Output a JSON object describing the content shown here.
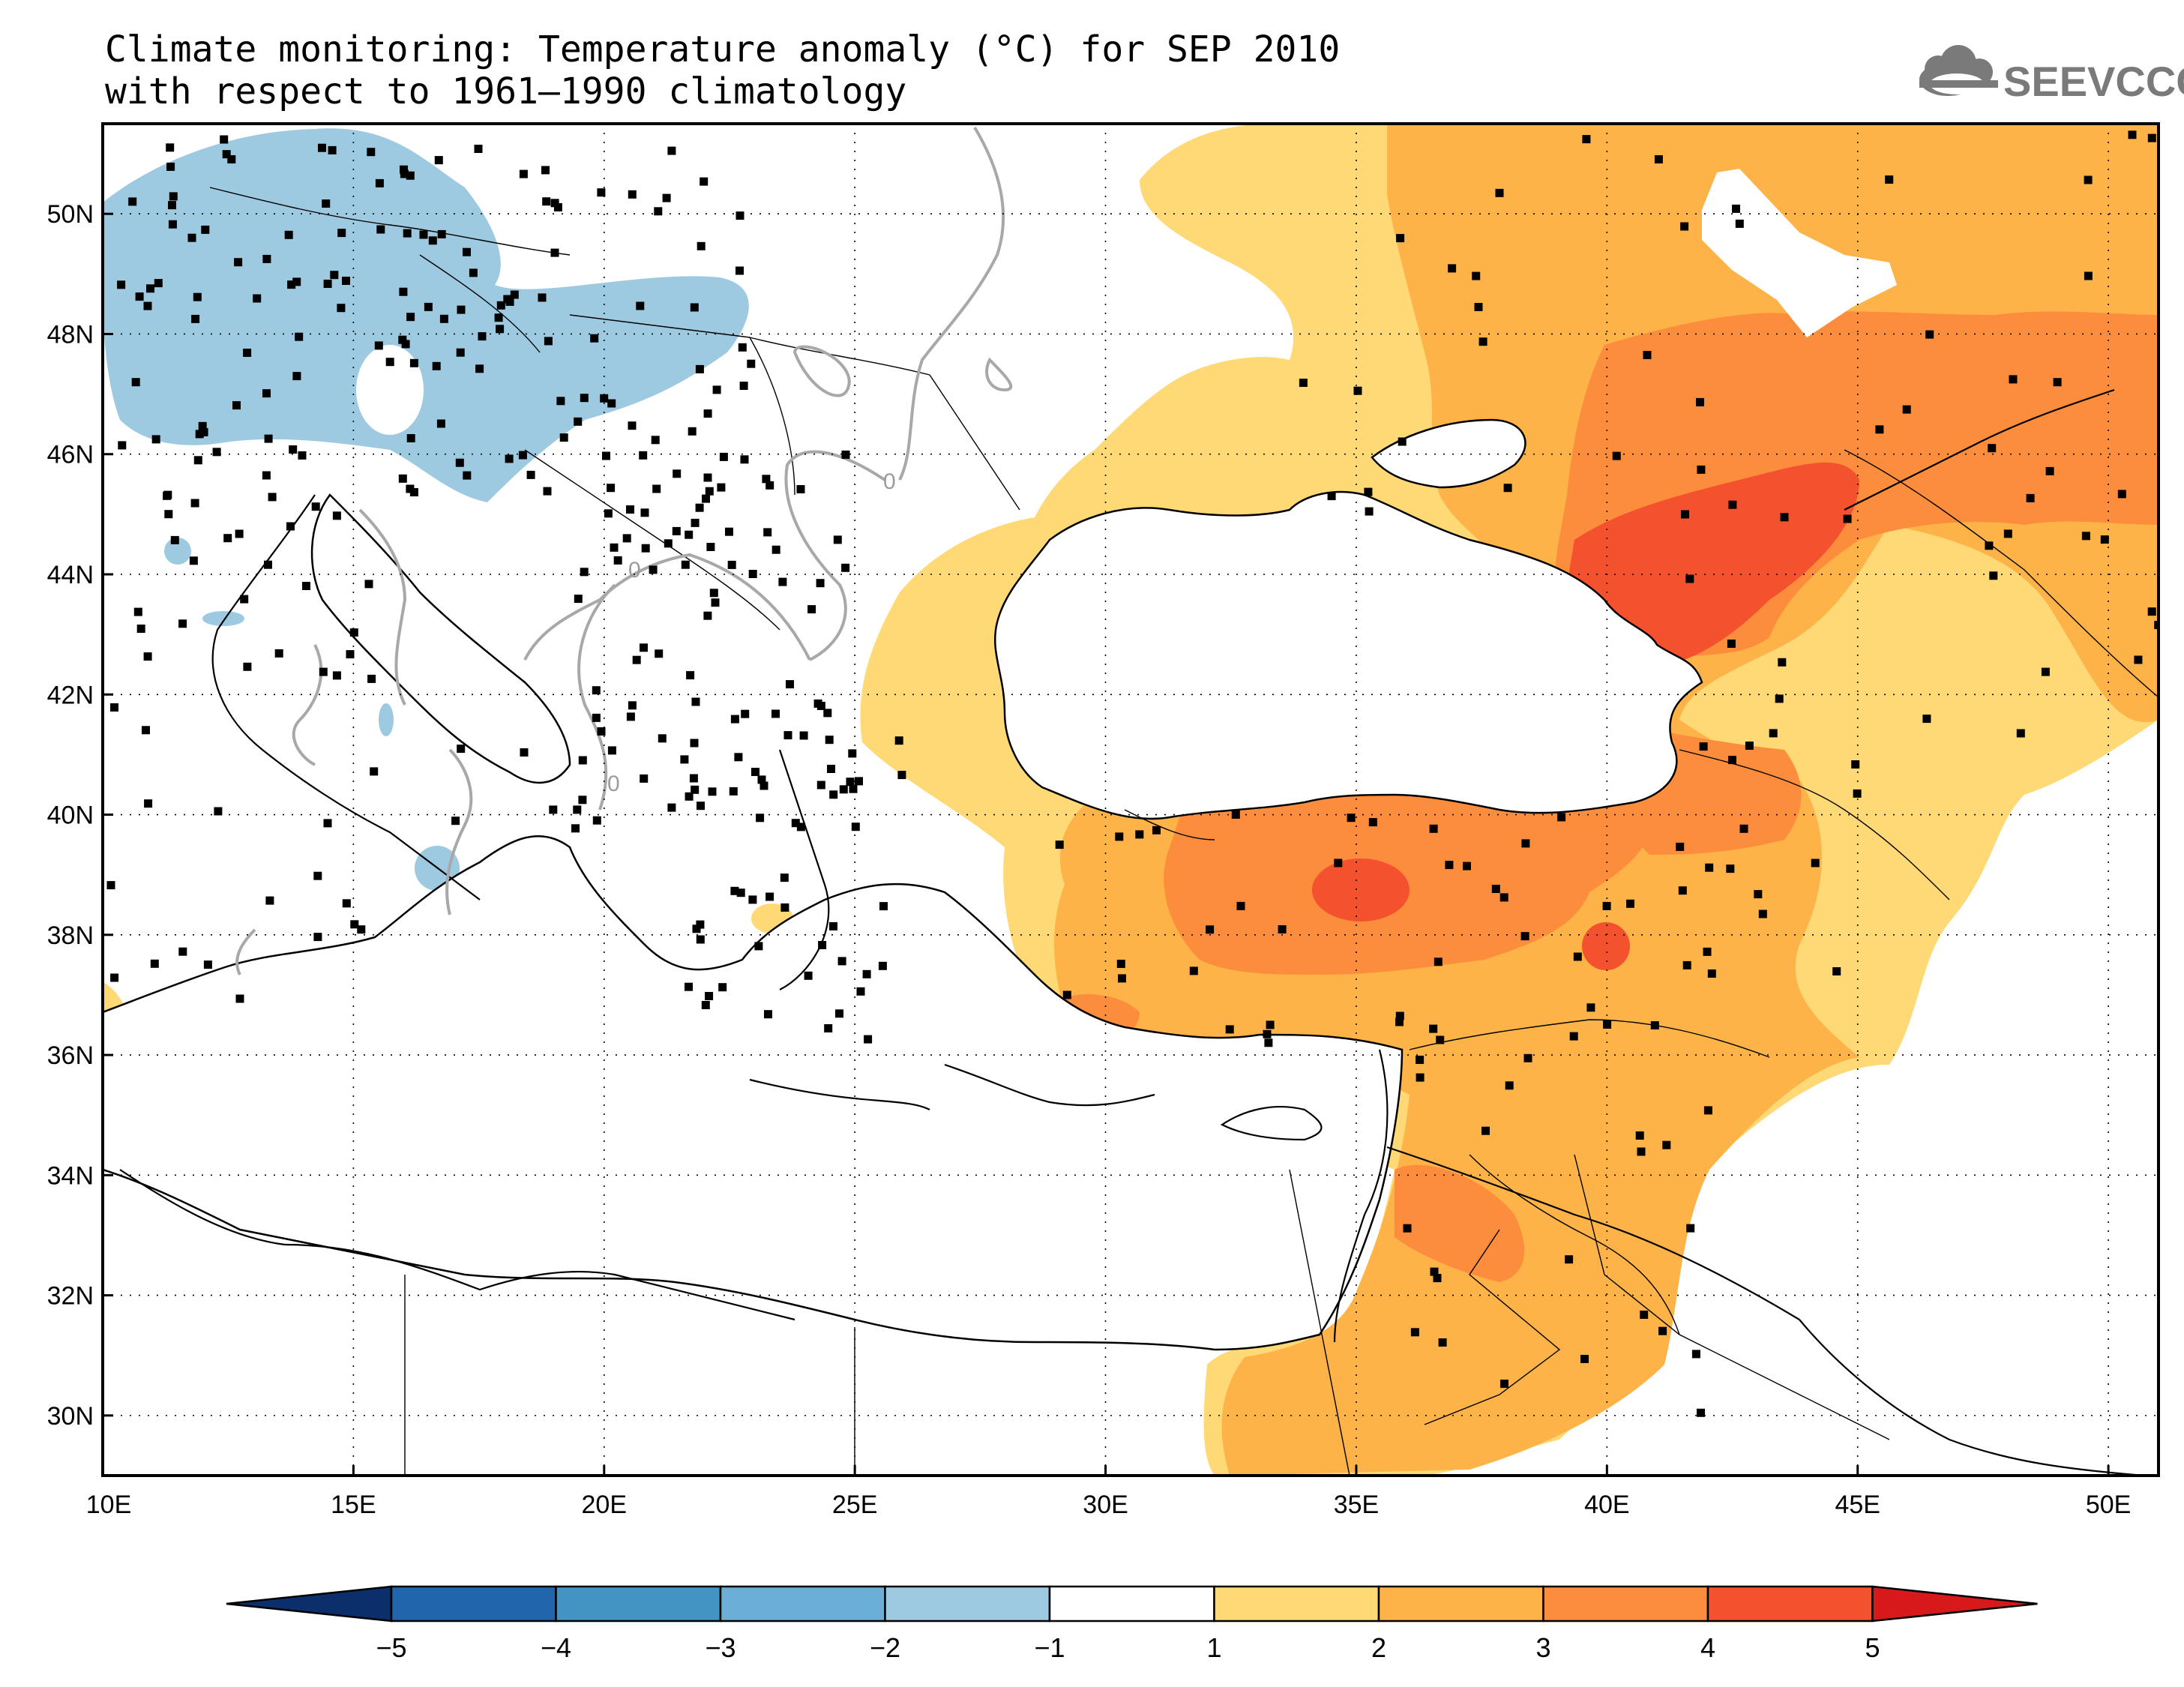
{
  "title": {
    "line1": "Climate monitoring: Temperature anomaly (°C) for SEP 2010",
    "line2": "with respect to 1961–1990 climatology"
  },
  "logo": {
    "text": "SEEVCCC",
    "icon": "cloud-icon",
    "color": "#7a7a7a"
  },
  "map": {
    "lon_range": [
      10,
      51
    ],
    "lat_range": [
      29,
      51.5
    ],
    "lon_ticks": [
      "10E",
      "15E",
      "20E",
      "25E",
      "30E",
      "35E",
      "40E",
      "45E",
      "50E"
    ],
    "lat_ticks": [
      "30N",
      "32N",
      "34N",
      "36N",
      "38N",
      "40N",
      "42N",
      "44N",
      "46N",
      "48N",
      "50N"
    ],
    "zero_contour_label": "0",
    "grid": "dotted"
  },
  "colorbar": {
    "labels": [
      "−5",
      "−4",
      "−3",
      "−2",
      "−1",
      "1",
      "2",
      "3",
      "4",
      "5"
    ],
    "colors": [
      "#0b2f6b",
      "#2166ac",
      "#4393c3",
      "#6baed6",
      "#9ecae1",
      "#ffffff",
      "#fed976",
      "#fdb347",
      "#fc8d3c",
      "#f4512e",
      "#d7191c"
    ]
  }
}
